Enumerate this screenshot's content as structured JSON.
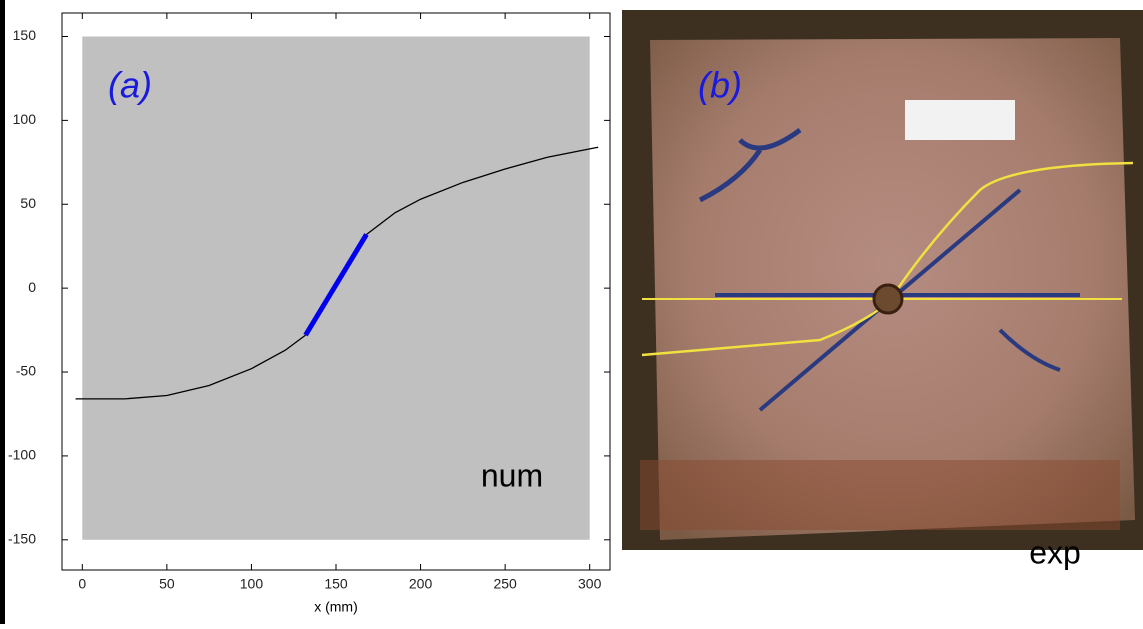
{
  "chart_data": {
    "type": "line",
    "xlabel": "x (mm)",
    "xlim": [
      -12,
      312
    ],
    "ylim": [
      -168,
      164
    ],
    "xticks": [
      0,
      50,
      100,
      150,
      200,
      250,
      300
    ],
    "yticks": [
      -150,
      -100,
      -50,
      0,
      50,
      100,
      150
    ],
    "grid": false,
    "shaded_region": {
      "x": [
        0,
        300
      ],
      "y": [
        -150,
        150
      ],
      "color": "#c0c0c0"
    },
    "series": [
      {
        "color": "#000000",
        "width": 1.3,
        "x": [
          -4,
          25,
          50,
          75,
          100,
          120,
          132
        ],
        "values": [
          -66,
          -66,
          -64,
          -58,
          -48,
          -37,
          -28
        ]
      },
      {
        "color": "#0000ee",
        "width": 5,
        "x": [
          132,
          168
        ],
        "values": [
          -28,
          32
        ]
      },
      {
        "color": "#000000",
        "width": 1.3,
        "x": [
          168,
          185,
          200,
          225,
          250,
          275,
          300,
          305
        ],
        "values": [
          32,
          45,
          53,
          63,
          71,
          78,
          83,
          84
        ]
      }
    ],
    "annotations": [
      "(a)",
      "num"
    ]
  },
  "photo": {
    "label": "(b)",
    "caption": "exp"
  }
}
